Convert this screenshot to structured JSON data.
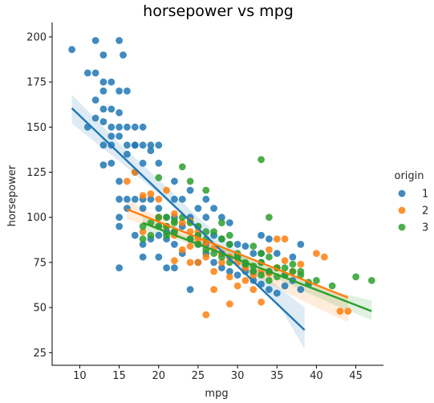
{
  "chart_data": {
    "type": "scatter",
    "title": "horsepower vs mpg",
    "xlabel": "mpg",
    "ylabel": "horsepower",
    "xlim": [
      6.5,
      48.5
    ],
    "ylim": [
      18,
      208
    ],
    "xticks": [
      10,
      15,
      20,
      25,
      30,
      35,
      40,
      45
    ],
    "yticks": [
      25,
      50,
      75,
      100,
      125,
      150,
      175,
      200
    ],
    "grid": false,
    "legend": {
      "title": "origin",
      "placement": "right"
    },
    "series": [
      {
        "name": "1",
        "color": "#1f77b4",
        "points": [
          [
            9,
            193
          ],
          [
            11,
            180
          ],
          [
            12,
            198
          ],
          [
            13,
            190
          ],
          [
            15,
            198
          ],
          [
            15.5,
            190
          ],
          [
            12,
            180
          ],
          [
            13,
            175
          ],
          [
            14,
            175
          ],
          [
            13,
            170
          ],
          [
            12,
            165
          ],
          [
            15,
            170
          ],
          [
            16,
            170
          ],
          [
            13,
            160
          ],
          [
            14,
            160
          ],
          [
            15,
            158
          ],
          [
            13,
            153
          ],
          [
            14,
            150
          ],
          [
            15,
            150
          ],
          [
            16,
            150
          ],
          [
            11,
            150
          ],
          [
            12,
            155
          ],
          [
            14,
            145
          ],
          [
            13,
            140
          ],
          [
            14,
            140
          ],
          [
            15,
            145
          ],
          [
            16,
            140
          ],
          [
            17,
            150
          ],
          [
            18,
            150
          ],
          [
            17,
            140
          ],
          [
            18,
            140
          ],
          [
            19,
            140
          ],
          [
            16,
            135
          ],
          [
            18,
            130
          ],
          [
            19,
            137
          ],
          [
            20,
            130
          ],
          [
            14,
            130
          ],
          [
            13,
            129
          ],
          [
            15,
            120
          ],
          [
            17,
            110
          ],
          [
            18,
            105
          ],
          [
            16,
            110
          ],
          [
            15,
            110
          ],
          [
            15,
            100
          ],
          [
            15,
            95
          ],
          [
            16,
            105
          ],
          [
            17,
            125
          ],
          [
            18,
            110
          ],
          [
            19,
            110
          ],
          [
            20,
            105
          ],
          [
            21,
            100
          ],
          [
            22,
            110
          ],
          [
            22,
            100
          ],
          [
            23,
            95
          ],
          [
            24,
            100
          ],
          [
            25,
            95
          ],
          [
            25,
            105
          ],
          [
            26,
            100
          ],
          [
            27,
            90
          ],
          [
            28,
            88
          ],
          [
            29,
            85
          ],
          [
            30,
            85
          ],
          [
            31,
            84
          ],
          [
            32,
            80
          ],
          [
            33,
            90
          ],
          [
            34,
            88
          ],
          [
            35,
            80
          ],
          [
            37,
            78
          ],
          [
            38,
            85
          ],
          [
            20,
            95
          ],
          [
            21,
            88
          ],
          [
            22,
            85
          ],
          [
            23,
            80
          ],
          [
            24,
            88
          ],
          [
            25,
            85
          ],
          [
            26,
            80
          ],
          [
            27,
            75
          ],
          [
            28,
            72
          ],
          [
            29,
            70
          ],
          [
            30,
            68
          ],
          [
            31,
            70
          ],
          [
            32,
            65
          ],
          [
            33,
            63
          ],
          [
            34,
            60
          ],
          [
            35,
            58
          ],
          [
            36,
            62
          ],
          [
            37,
            65
          ],
          [
            38,
            60
          ],
          [
            39,
            63
          ],
          [
            18,
            85
          ],
          [
            19,
            88
          ],
          [
            20,
            90
          ],
          [
            21,
            92
          ],
          [
            22,
            92
          ],
          [
            17,
            90
          ],
          [
            18,
            78
          ],
          [
            20,
            78
          ],
          [
            21,
            72
          ],
          [
            22,
            72
          ],
          [
            24,
            60
          ],
          [
            15,
            72
          ],
          [
            26,
            110
          ],
          [
            27,
            105
          ],
          [
            28,
            100
          ],
          [
            29,
            97
          ],
          [
            24,
            115
          ],
          [
            25,
            90
          ],
          [
            17,
            140
          ],
          [
            20,
            140
          ],
          [
            22,
            120
          ],
          [
            23,
            110
          ],
          [
            26,
            85
          ],
          [
            30,
            78
          ],
          [
            32,
            70
          ],
          [
            33,
            75
          ],
          [
            34,
            70
          ],
          [
            35,
            72
          ],
          [
            36,
            68
          ],
          [
            25,
            75
          ],
          [
            28,
            80
          ],
          [
            31,
            74
          ],
          [
            33,
            80
          ]
        ],
        "fit": {
          "x": [
            9,
            38.5
          ],
          "y": [
            160.5,
            37.5
          ]
        },
        "ci": {
          "upper": [
            [
              9,
              168
            ],
            [
              15,
              141
            ],
            [
              20,
              121
            ],
            [
              25,
              100
            ],
            [
              30,
              81
            ],
            [
              35,
              62
            ],
            [
              38.5,
              50
            ]
          ],
          "lower": [
            [
              9,
              152
            ],
            [
              15,
              131
            ],
            [
              20,
              113
            ],
            [
              25,
              93
            ],
            [
              30,
              74
            ],
            [
              35,
              53
            ],
            [
              38.5,
              27
            ]
          ]
        }
      },
      {
        "name": "2",
        "color": "#ff7f0e",
        "points": [
          [
            16,
            120
          ],
          [
            17,
            125
          ],
          [
            18,
            112
          ],
          [
            19,
            113
          ],
          [
            20,
            110
          ],
          [
            21,
            115
          ],
          [
            22,
            102
          ],
          [
            23,
            97
          ],
          [
            24,
            92
          ],
          [
            25,
            88
          ],
          [
            26,
            86
          ],
          [
            27,
            83
          ],
          [
            28,
            80
          ],
          [
            29,
            78
          ],
          [
            30,
            75
          ],
          [
            31,
            72
          ],
          [
            32,
            68
          ],
          [
            33,
            70
          ],
          [
            34,
            69
          ],
          [
            35,
            72
          ],
          [
            36,
            76
          ],
          [
            37,
            70
          ],
          [
            38,
            74
          ],
          [
            40,
            80
          ],
          [
            41,
            78
          ],
          [
            43,
            48
          ],
          [
            44,
            48
          ],
          [
            21,
            95
          ],
          [
            22,
            90
          ],
          [
            24,
            84
          ],
          [
            25,
            75
          ],
          [
            26,
            78
          ],
          [
            27,
            70
          ],
          [
            28,
            75
          ],
          [
            29,
            67
          ],
          [
            30,
            62
          ],
          [
            31,
            65
          ],
          [
            32,
            60
          ],
          [
            34,
            82
          ],
          [
            35,
            88
          ],
          [
            24,
            75
          ],
          [
            22,
            76
          ],
          [
            23,
            82
          ],
          [
            25,
            92
          ],
          [
            26,
            46
          ],
          [
            27,
            60
          ],
          [
            29,
            52
          ],
          [
            33,
            53
          ],
          [
            24,
            98
          ],
          [
            18,
            92
          ],
          [
            20,
            100
          ],
          [
            36,
            88
          ]
        ],
        "fit": {
          "x": [
            16,
            44
          ],
          "y": [
            104.5,
            55.5
          ]
        },
        "ci": {
          "upper": [
            [
              16,
              110
            ],
            [
              20,
              100
            ],
            [
              25,
              89
            ],
            [
              30,
              79
            ],
            [
              35,
              70
            ],
            [
              40,
              62
            ],
            [
              44,
              57
            ]
          ],
          "lower": [
            [
              16,
              99
            ],
            [
              20,
              93
            ],
            [
              25,
              84
            ],
            [
              30,
              73
            ],
            [
              35,
              61
            ],
            [
              40,
              50
            ],
            [
              44,
              42
            ]
          ]
        }
      },
      {
        "name": "3",
        "color": "#2ca02c",
        "points": [
          [
            18,
            95
          ],
          [
            19,
            97
          ],
          [
            20,
            100
          ],
          [
            21,
            95
          ],
          [
            22,
            92
          ],
          [
            23,
            100
          ],
          [
            24,
            97
          ],
          [
            25,
            90
          ],
          [
            26,
            88
          ],
          [
            27,
            92
          ],
          [
            28,
            88
          ],
          [
            29,
            85
          ],
          [
            30,
            80
          ],
          [
            31,
            75
          ],
          [
            32,
            73
          ],
          [
            33,
            75
          ],
          [
            34,
            70
          ],
          [
            35,
            72
          ],
          [
            36,
            68
          ],
          [
            37,
            70
          ],
          [
            18,
            88
          ],
          [
            19,
            90
          ],
          [
            20,
            95
          ],
          [
            21,
            100
          ],
          [
            22,
            97
          ],
          [
            24,
            88
          ],
          [
            25,
            85
          ],
          [
            26,
            82
          ],
          [
            27,
            80
          ],
          [
            28,
            78
          ],
          [
            29,
            75
          ],
          [
            30,
            78
          ],
          [
            31,
            74
          ],
          [
            32,
            70
          ],
          [
            33,
            68
          ],
          [
            34,
            65
          ],
          [
            35,
            67
          ],
          [
            38,
            70
          ],
          [
            40,
            65
          ],
          [
            42,
            62
          ],
          [
            45,
            67
          ],
          [
            47,
            65
          ],
          [
            20,
            122
          ],
          [
            24,
            120
          ],
          [
            23,
            128
          ],
          [
            26,
            115
          ],
          [
            33,
            132
          ],
          [
            34,
            100
          ],
          [
            28,
            97
          ],
          [
            29,
            90
          ],
          [
            32,
            84
          ],
          [
            33,
            80
          ],
          [
            34,
            78
          ],
          [
            36,
            72
          ],
          [
            37,
            74
          ],
          [
            38,
            68
          ],
          [
            39,
            64
          ],
          [
            25,
            95
          ],
          [
            26,
            92
          ],
          [
            22,
            98
          ],
          [
            21,
            90
          ]
        ],
        "fit": {
          "x": [
            18,
            47
          ],
          "y": [
            97,
            48
          ]
        },
        "ci": {
          "upper": [
            [
              18,
              101
            ],
            [
              22,
              92
            ],
            [
              27,
              85
            ],
            [
              32,
              76
            ],
            [
              37,
              67
            ],
            [
              42,
              59
            ],
            [
              47,
              54
            ]
          ],
          "lower": [
            [
              18,
              93
            ],
            [
              22,
              88
            ],
            [
              27,
              81
            ],
            [
              32,
              72
            ],
            [
              37,
              62
            ],
            [
              42,
              52
            ],
            [
              47,
              43
            ]
          ]
        }
      }
    ]
  }
}
